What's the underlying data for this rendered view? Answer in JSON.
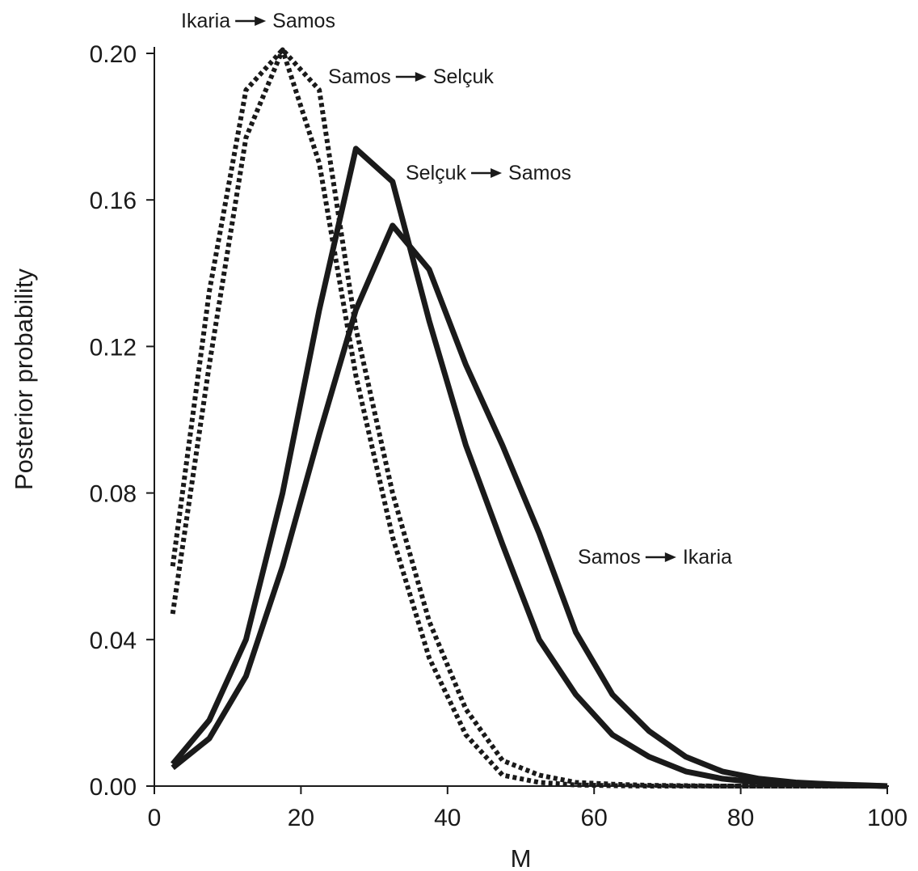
{
  "chart_data": {
    "type": "line",
    "title": "",
    "xlabel": "M",
    "ylabel": "Posterior probability",
    "xlim": [
      0,
      100
    ],
    "ylim": [
      0,
      0.2
    ],
    "x_ticks": [
      "0",
      "20",
      "40",
      "60",
      "80",
      "100"
    ],
    "y_ticks": [
      "0.00",
      "0.04",
      "0.08",
      "0.12",
      "0.16",
      "0.20"
    ],
    "grid": false,
    "legend": "none",
    "series": [
      {
        "name": "Ikaria → Samos",
        "line_style": "dotted",
        "color": "#1a1a1a",
        "x": [
          2.5,
          7.5,
          12.5,
          17.5,
          22.5,
          27.5,
          32.5,
          37.5,
          42.5,
          47.5,
          52.5,
          57.5,
          62.5,
          67.5,
          72.5,
          77.5,
          82.5,
          87.5,
          92.5,
          97.5
        ],
        "y": [
          0.047,
          0.115,
          0.177,
          0.201,
          0.17,
          0.112,
          0.068,
          0.035,
          0.014,
          0.003,
          0.001,
          0.0003,
          0.0001,
          0.0,
          0.0,
          0.0,
          0.0,
          0.0,
          0.0,
          0.0
        ]
      },
      {
        "name": "Samos → Selçuk",
        "line_style": "dotted",
        "color": "#1a1a1a",
        "x": [
          2.5,
          7.5,
          12.5,
          17.5,
          22.5,
          27.5,
          32.5,
          37.5,
          42.5,
          47.5,
          52.5,
          57.5,
          62.5,
          67.5,
          72.5,
          77.5,
          82.5,
          87.5,
          92.5,
          97.5
        ],
        "y": [
          0.06,
          0.135,
          0.19,
          0.201,
          0.19,
          0.125,
          0.08,
          0.045,
          0.021,
          0.007,
          0.003,
          0.001,
          0.0005,
          0.0002,
          0.0001,
          0.0,
          0.0,
          0.0,
          0.0,
          0.0
        ]
      },
      {
        "name": "Selçuk → Samos",
        "line_style": "solid",
        "color": "#1a1a1a",
        "x": [
          2.5,
          7.5,
          12.5,
          17.5,
          22.5,
          27.5,
          32.5,
          37.5,
          42.5,
          47.5,
          52.5,
          57.5,
          62.5,
          67.5,
          72.5,
          77.5,
          82.5,
          87.5,
          92.5,
          97.5,
          100
        ],
        "y": [
          0.006,
          0.018,
          0.04,
          0.08,
          0.13,
          0.174,
          0.165,
          0.127,
          0.093,
          0.066,
          0.04,
          0.025,
          0.014,
          0.008,
          0.004,
          0.002,
          0.001,
          0.0005,
          0.0002,
          0.0001,
          0.0
        ]
      },
      {
        "name": "Samos → Ikaria",
        "line_style": "solid",
        "color": "#1a1a1a",
        "x": [
          2.5,
          7.5,
          12.5,
          17.5,
          22.5,
          27.5,
          32.5,
          37.5,
          42.5,
          47.5,
          52.5,
          57.5,
          62.5,
          67.5,
          72.5,
          77.5,
          82.5,
          87.5,
          92.5,
          97.5,
          100
        ],
        "y": [
          0.005,
          0.013,
          0.03,
          0.06,
          0.096,
          0.13,
          0.153,
          0.141,
          0.115,
          0.093,
          0.069,
          0.042,
          0.025,
          0.015,
          0.008,
          0.004,
          0.002,
          0.001,
          0.0005,
          0.0002,
          0.0
        ]
      }
    ],
    "annotations": [
      {
        "id": "ikaria-samos",
        "from": "Ikaria",
        "to": "Samos"
      },
      {
        "id": "samos-selcuk",
        "from": "Samos",
        "to": "Selçuk"
      },
      {
        "id": "selcuk-samos",
        "from": "Selçuk",
        "to": "Samos"
      },
      {
        "id": "samos-ikaria",
        "from": "Samos",
        "to": "Ikaria"
      }
    ]
  }
}
